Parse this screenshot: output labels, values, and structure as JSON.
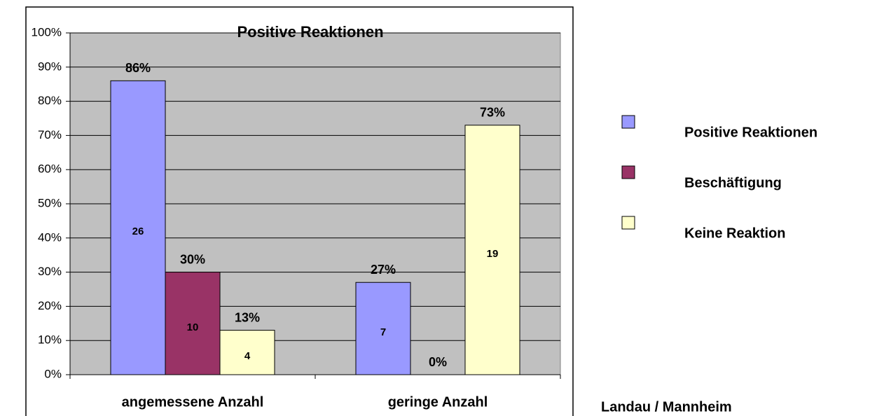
{
  "chart_data": {
    "type": "bar",
    "title": "Positive Reaktionen",
    "annotation": "Landau / Mannheim",
    "categories": [
      "angemessene Anzahl",
      "geringe Anzahl"
    ],
    "series": [
      {
        "name": "Positive Reaktionen",
        "color": "#9999ff",
        "values": [
          86,
          27
        ],
        "value_labels": [
          "86%",
          "27%"
        ],
        "counts": [
          26,
          7
        ]
      },
      {
        "name": "Beschäftigung",
        "color": "#993366",
        "values": [
          30,
          0
        ],
        "value_labels": [
          "30%",
          "0%"
        ],
        "counts": [
          10,
          null
        ]
      },
      {
        "name": "Keine Reaktion",
        "color": "#ffffcc",
        "values": [
          13,
          73
        ],
        "value_labels": [
          "13%",
          "73%"
        ],
        "counts": [
          4,
          19
        ]
      }
    ],
    "ylim": [
      0,
      100
    ],
    "yticks": [
      {
        "value": 0,
        "label": "0%"
      },
      {
        "value": 10,
        "label": "10%"
      },
      {
        "value": 20,
        "label": "20%"
      },
      {
        "value": 30,
        "label": "30%"
      },
      {
        "value": 40,
        "label": "40%"
      },
      {
        "value": 50,
        "label": "50%"
      },
      {
        "value": 60,
        "label": "60%"
      },
      {
        "value": 70,
        "label": "70%"
      },
      {
        "value": 80,
        "label": "80%"
      },
      {
        "value": 90,
        "label": "90%"
      },
      {
        "value": 100,
        "label": "100%"
      }
    ],
    "grid": true,
    "legend": "right"
  }
}
